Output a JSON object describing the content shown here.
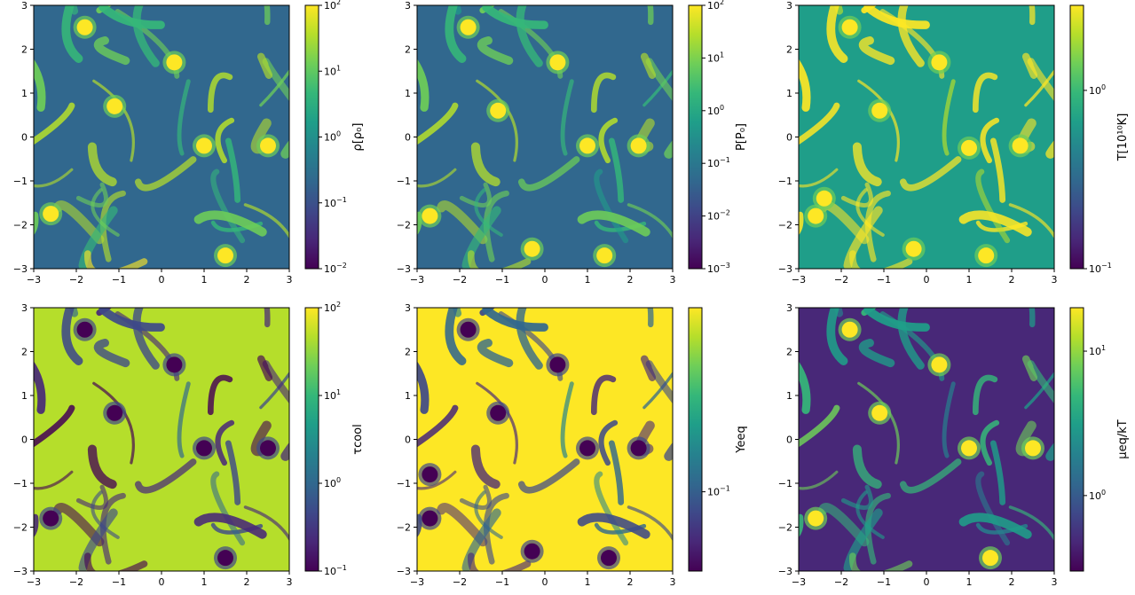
{
  "colormap": [
    "#440154",
    "#482878",
    "#3e4989",
    "#31688e",
    "#26828e",
    "#1f9e89",
    "#35b779",
    "#6ece58",
    "#b5de2b",
    "#fde725"
  ],
  "chart_data": [
    {
      "type": "heatmap",
      "title": "",
      "xlim": [
        -3,
        3
      ],
      "ylim": [
        -3,
        3
      ],
      "xticks": [
        "−3",
        "−2",
        "−1",
        "0",
        "1",
        "2",
        "3"
      ],
      "yticks": [
        "−3",
        "−2",
        "−1",
        "0",
        "1",
        "2",
        "3"
      ],
      "colorbar_label": "ρ[ρ₀]",
      "colorbar_scale": "log",
      "colorbar_ticks": [
        {
          "base": "10",
          "exp": "2"
        },
        {
          "base": "10",
          "exp": "1"
        },
        {
          "base": "10",
          "exp": "0"
        },
        {
          "base": "10",
          "exp": "−1"
        },
        {
          "base": "10",
          "exp": "−2"
        }
      ],
      "colorbar_range": [
        0.01,
        100
      ],
      "field_bias": 0.35,
      "blobs": [
        [
          -1.1,
          0.7
        ],
        [
          -2.6,
          -1.75
        ],
        [
          1.0,
          -0.2
        ],
        [
          -1.8,
          2.5
        ],
        [
          0.3,
          1.7
        ],
        [
          1.5,
          -2.7
        ],
        [
          2.5,
          -0.2
        ]
      ]
    },
    {
      "type": "heatmap",
      "title": "",
      "xlim": [
        -3,
        3
      ],
      "ylim": [
        -3,
        3
      ],
      "xticks": [
        "−3",
        "−2",
        "−1",
        "0",
        "1",
        "2",
        "3"
      ],
      "yticks": [
        "−3",
        "−2",
        "−1",
        "0",
        "1",
        "2",
        "3"
      ],
      "colorbar_label": "P[P₀]",
      "colorbar_scale": "log",
      "colorbar_ticks": [
        {
          "base": "10",
          "exp": "2"
        },
        {
          "base": "10",
          "exp": "1"
        },
        {
          "base": "10",
          "exp": "0"
        },
        {
          "base": "10",
          "exp": "−1"
        },
        {
          "base": "10",
          "exp": "−2"
        },
        {
          "base": "10",
          "exp": "−3"
        }
      ],
      "colorbar_range": [
        0.001,
        100
      ],
      "field_bias": 0.3,
      "blobs": [
        [
          -1.1,
          0.6
        ],
        [
          -2.7,
          -1.8
        ],
        [
          1.0,
          -0.2
        ],
        [
          -1.8,
          2.5
        ],
        [
          0.3,
          1.7
        ],
        [
          1.4,
          -2.7
        ],
        [
          2.2,
          -0.2
        ],
        [
          -0.3,
          -2.55
        ]
      ]
    },
    {
      "type": "heatmap",
      "title": "",
      "xlim": [
        -3,
        3
      ],
      "ylim": [
        -3,
        3
      ],
      "xticks": [
        "−3",
        "−2",
        "−1",
        "0",
        "1",
        "2",
        "3"
      ],
      "yticks": [
        "−3",
        "−2",
        "−1",
        "0",
        "1",
        "2",
        "3"
      ],
      "colorbar_label": "T[10¹⁰K]",
      "colorbar_scale": "log",
      "colorbar_ticks": [
        {
          "base": "10",
          "exp": "0"
        },
        {
          "base": "10",
          "exp": "−1"
        }
      ],
      "colorbar_range": [
        0.1,
        3
      ],
      "field_bias": 0.6,
      "blobs": [
        [
          -1.1,
          0.6
        ],
        [
          -2.6,
          -1.8
        ],
        [
          1.0,
          -0.25
        ],
        [
          -1.8,
          2.5
        ],
        [
          0.3,
          1.7
        ],
        [
          1.4,
          -2.7
        ],
        [
          2.2,
          -0.2
        ],
        [
          -0.3,
          -2.55
        ],
        [
          -2.4,
          -1.4
        ]
      ]
    },
    {
      "type": "heatmap",
      "title": "",
      "xlim": [
        -3,
        3
      ],
      "ylim": [
        -3,
        3
      ],
      "xticks": [
        "−3",
        "−2",
        "−1",
        "0",
        "1",
        "2",
        "3"
      ],
      "yticks": [
        "−3",
        "−2",
        "−1",
        "0",
        "1",
        "2",
        "3"
      ],
      "colorbar_label": "τcool",
      "colorbar_scale": "log",
      "colorbar_ticks": [
        {
          "base": "10",
          "exp": "2"
        },
        {
          "base": "10",
          "exp": "1"
        },
        {
          "base": "10",
          "exp": "0"
        },
        {
          "base": "10",
          "exp": "−1"
        }
      ],
      "colorbar_range": [
        0.1,
        100
      ],
      "field_bias": 0.85,
      "inverted": true,
      "blobs": [
        [
          -1.1,
          0.6
        ],
        [
          -2.6,
          -1.8
        ],
        [
          1.0,
          -0.2
        ],
        [
          -1.8,
          2.5
        ],
        [
          0.3,
          1.7
        ],
        [
          1.5,
          -2.7
        ],
        [
          2.5,
          -0.2
        ]
      ]
    },
    {
      "type": "heatmap",
      "title": "",
      "xlim": [
        -3,
        3
      ],
      "ylim": [
        -3,
        3
      ],
      "xticks": [
        "−3",
        "−2",
        "−1",
        "0",
        "1",
        "2",
        "3"
      ],
      "yticks": [
        "−3",
        "−2",
        "−1",
        "0",
        "1",
        "2",
        "3"
      ],
      "colorbar_label": "Yeeq",
      "colorbar_scale": "log",
      "colorbar_ticks": [
        {
          "base": "10",
          "exp": "−1"
        }
      ],
      "colorbar_range": [
        0.05,
        0.5
      ],
      "field_bias": 0.97,
      "inverted": true,
      "blobs": [
        [
          -1.1,
          0.6
        ],
        [
          -2.7,
          -1.8
        ],
        [
          1.0,
          -0.2
        ],
        [
          -1.8,
          2.5
        ],
        [
          0.3,
          1.7
        ],
        [
          1.5,
          -2.7
        ],
        [
          2.2,
          -0.2
        ],
        [
          -0.3,
          -2.55
        ],
        [
          -2.7,
          -0.8
        ]
      ]
    },
    {
      "type": "heatmap",
      "title": "",
      "xlim": [
        -3,
        3
      ],
      "ylim": [
        -3,
        3
      ],
      "xticks": [
        "−3",
        "−2",
        "−1",
        "0",
        "1",
        "2",
        "3"
      ],
      "yticks": [
        "−3",
        "−2",
        "−1",
        "0",
        "1",
        "2",
        "3"
      ],
      "colorbar_label": "μeq/kT",
      "colorbar_scale": "log",
      "colorbar_ticks": [
        {
          "base": "10",
          "exp": "1"
        },
        {
          "base": "10",
          "exp": "0"
        }
      ],
      "colorbar_range": [
        0.3,
        20
      ],
      "field_bias": 0.15,
      "blobs": [
        [
          -1.1,
          0.6
        ],
        [
          -2.6,
          -1.8
        ],
        [
          1.0,
          -0.2
        ],
        [
          -1.8,
          2.5
        ],
        [
          0.3,
          1.7
        ],
        [
          1.5,
          -2.7
        ],
        [
          2.5,
          -0.2
        ]
      ]
    }
  ]
}
